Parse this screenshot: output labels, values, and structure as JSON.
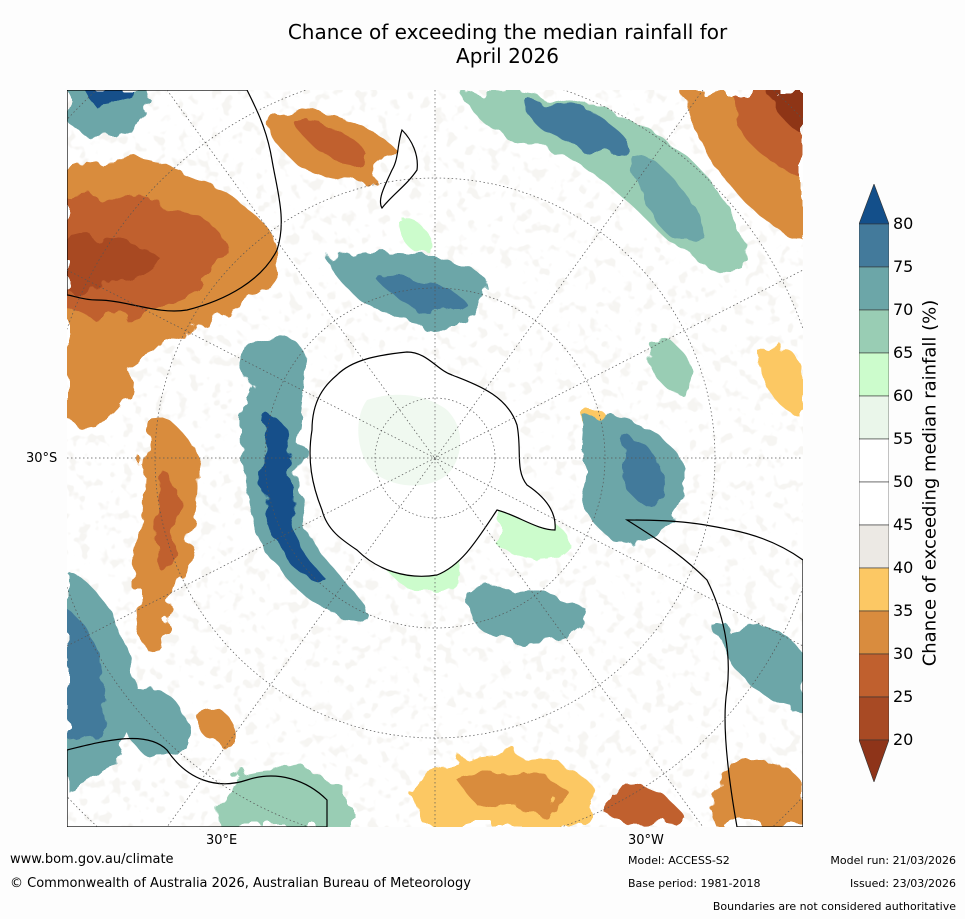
{
  "title_line1": "Chance of exceeding the median rainfall for",
  "title_line2": "April 2026",
  "map": {
    "lat_label": "30°S",
    "lon_label_east": "30°E",
    "lon_label_west": "30°W"
  },
  "colorbar": {
    "label": "Chance of exceeding median rainfall (%)",
    "ticks": [
      "80",
      "75",
      "70",
      "65",
      "60",
      "55",
      "50",
      "45",
      "40",
      "35",
      "30",
      "25",
      "20"
    ],
    "colors": {
      "above_80": "#134f8a",
      "75_80": "#437a9b",
      "70_75": "#6ca6a8",
      "65_70": "#99cdb4",
      "60_65": "#ccfccc",
      "55_60": "#eaf6ea",
      "50_55": "#ffffff",
      "45_50": "#ffffff",
      "40_45": "#ece9e4",
      "35_40": "#fcc864",
      "30_35": "#d98c3e",
      "25_30": "#c0602e",
      "20_25": "#a84a24",
      "below_20": "#8e3419"
    }
  },
  "footer": {
    "url": "www.bom.gov.au/climate",
    "copyright": "© Commonwealth of Australia 2026, Australian Bureau of Meteorology",
    "model": "Model: ACCESS-S2",
    "base_period": "Base period: 1981-2018",
    "model_run": "Model run: 21/03/2026",
    "issued": "Issued: 23/03/2026",
    "disclaimer": "Boundaries are not considered authoritative"
  }
}
